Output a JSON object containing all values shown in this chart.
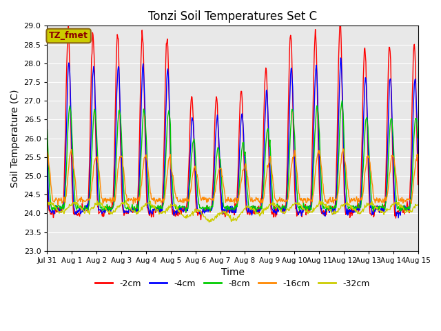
{
  "title": "Tonzi Soil Temperatures Set C",
  "xlabel": "Time",
  "ylabel": "Soil Temperature (C)",
  "ylim": [
    23.0,
    29.0
  ],
  "yticks": [
    23.0,
    23.5,
    24.0,
    24.5,
    25.0,
    25.5,
    26.0,
    26.5,
    27.0,
    27.5,
    28.0,
    28.5,
    29.0
  ],
  "xtick_labels": [
    "Jul 31",
    "Aug 1",
    "Aug 2",
    "Aug 3",
    "Aug 4",
    "Aug 5",
    "Aug 6",
    "Aug 7",
    "Aug 8",
    "Aug 9",
    "Aug 10",
    "Aug 11",
    "Aug 12",
    "Aug 13",
    "Aug 14",
    "Aug 15"
  ],
  "legend_labels": [
    "-2cm",
    "-4cm",
    "-8cm",
    "-16cm",
    "-32cm"
  ],
  "legend_colors": [
    "#ff0000",
    "#0000ff",
    "#00cc00",
    "#ff8800",
    "#cccc00"
  ],
  "annotation_text": "TZ_fmet",
  "annotation_bg": "#cccc00",
  "annotation_fg": "#8b0000",
  "bg_color": "#e8e8e8",
  "linewidth": 1.0,
  "days": 15,
  "pts_per_day": 48
}
